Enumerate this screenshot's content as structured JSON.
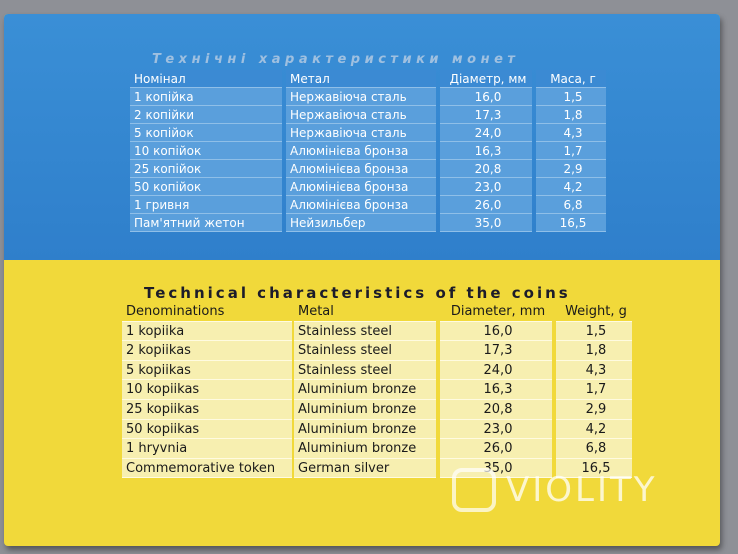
{
  "ukrainian": {
    "title": "Технічні характеристики монет",
    "header": [
      "Номінал",
      "Метал",
      "Діаметр, мм",
      "Маса, г"
    ],
    "rows": [
      [
        "1 копійка",
        "Нержавіюча сталь",
        "16,0",
        "1,5"
      ],
      [
        "2 копійки",
        "Нержавіюча сталь",
        "17,3",
        "1,8"
      ],
      [
        "5 копійок",
        "Нержавіюча сталь",
        "24,0",
        "4,3"
      ],
      [
        "10 копійок",
        "Алюмінієва бронза",
        "16,3",
        "1,7"
      ],
      [
        "25 копійок",
        "Алюмінієва бронза",
        "20,8",
        "2,9"
      ],
      [
        "50 копійок",
        "Алюмінієва бронза",
        "23,0",
        "4,2"
      ],
      [
        "1 гривня",
        "Алюмінієва бронза",
        "26,0",
        "6,8"
      ],
      [
        "Пам'ятний жетон",
        "Нейзильбер",
        "35,0",
        "16,5"
      ]
    ]
  },
  "english": {
    "title": "Technical characteristics of the coins",
    "header": [
      "Denominations",
      "Metal",
      "Diameter, mm",
      "Weight, g"
    ],
    "rows": [
      [
        "1 kopiika",
        "Stainless steel",
        "16,0",
        "1,5"
      ],
      [
        "2 kopiikas",
        "Stainless steel",
        "17,3",
        "1,8"
      ],
      [
        "5 kopiikas",
        "Stainless steel",
        "24,0",
        "4,3"
      ],
      [
        "10 kopiikas",
        "Aluminium bronze",
        "16,3",
        "1,7"
      ],
      [
        "25 kopiikas",
        "Aluminium bronze",
        "20,8",
        "2,9"
      ],
      [
        "50 kopiikas",
        "Aluminium bronze",
        "23,0",
        "4,2"
      ],
      [
        "1 hryvnia",
        "Aluminium bronze",
        "26,0",
        "6,8"
      ],
      [
        "Commemorative token",
        "German silver",
        "35,0",
        "16,5"
      ]
    ]
  },
  "watermark": "VIOLITY"
}
